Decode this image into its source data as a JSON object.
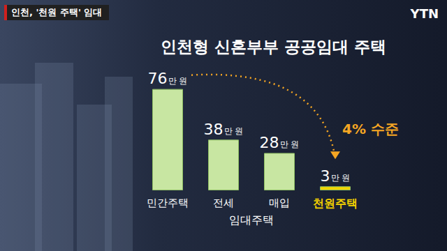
{
  "header": "인천, '천원 주택' 임대",
  "logo": "YTN",
  "chart_data": {
    "type": "bar",
    "title": "인천형 신혼부부 공공임대 주택",
    "categories": [
      "민간주택",
      "전세",
      "매입",
      "천원주택"
    ],
    "category_groups": [
      {
        "label": "임대주택",
        "categories": [
          "전세",
          "매입"
        ]
      }
    ],
    "values": [
      76,
      38,
      28,
      3
    ],
    "value_labels": [
      "76만 원",
      "38만 원",
      "28만 원",
      "3만 원"
    ],
    "colors": [
      "#c8e6a2",
      "#c8e6a2",
      "#c8e6a2",
      "#f2d600"
    ],
    "annotation": "4% 수준",
    "ylim": [
      0,
      80
    ],
    "data_labels": true,
    "tick_labels": "x",
    "grid": false
  }
}
